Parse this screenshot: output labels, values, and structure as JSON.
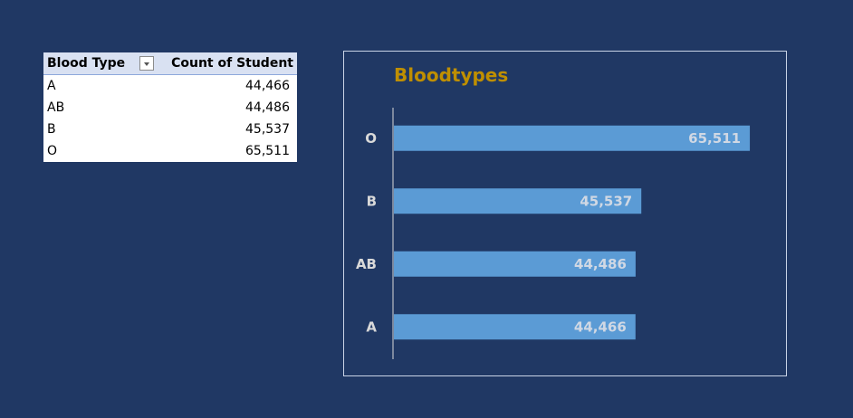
{
  "pivot_table": {
    "header_row_label": "Blood Type",
    "header_value_label": "Count of Student",
    "rows": [
      {
        "label": "A",
        "value": "44,466"
      },
      {
        "label": "AB",
        "value": "44,486"
      },
      {
        "label": "B",
        "value": "45,537"
      },
      {
        "label": "O",
        "value": "65,511"
      }
    ]
  },
  "chart_data": {
    "type": "bar",
    "orientation": "horizontal",
    "title": "Bloodtypes",
    "categories": [
      "O",
      "B",
      "AB",
      "A"
    ],
    "values": [
      65511,
      45537,
      44486,
      44466
    ],
    "value_labels": [
      "65,511",
      "45,537",
      "44,486",
      "44,466"
    ],
    "xlim": [
      0,
      72000
    ],
    "grid": false,
    "legend": "none",
    "colors": {
      "bar": "#5b9bd5",
      "title": "#bf8f00",
      "background": "#203864",
      "axis": "#d9d9d9"
    }
  }
}
